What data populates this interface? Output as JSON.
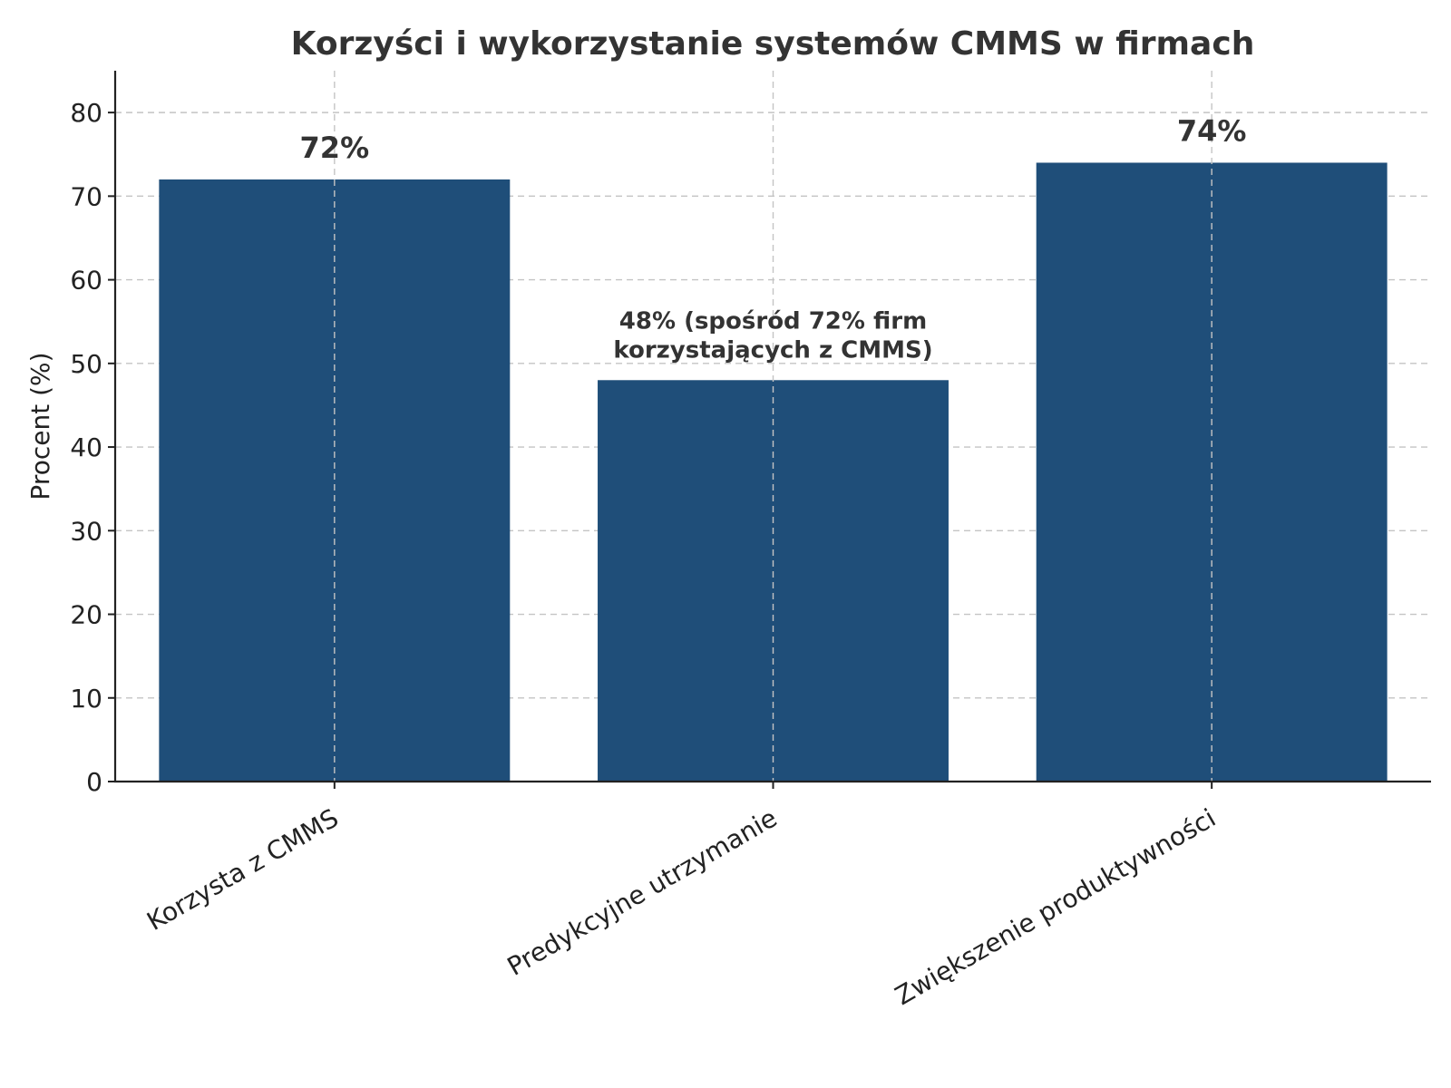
{
  "chart_data": {
    "type": "bar",
    "title": "Korzyści i wykorzystanie systemów CMMS w firmach",
    "xlabel": "",
    "ylabel": "Procent (%)",
    "categories": [
      "Korzysta z CMMS",
      "Predykcyjne utrzymanie",
      "Zwiększenie produktywności"
    ],
    "values": [
      72,
      48,
      74
    ],
    "data_labels": [
      [
        "72%"
      ],
      [
        "48% (spośród 72% firm",
        "korzystających z CMMS)"
      ],
      [
        "74%"
      ]
    ],
    "ylim": [
      0,
      85
    ],
    "yticks": [
      0,
      10,
      20,
      30,
      40,
      50,
      60,
      70,
      80
    ],
    "grid": true,
    "bar_color": "#1f4e79"
  }
}
